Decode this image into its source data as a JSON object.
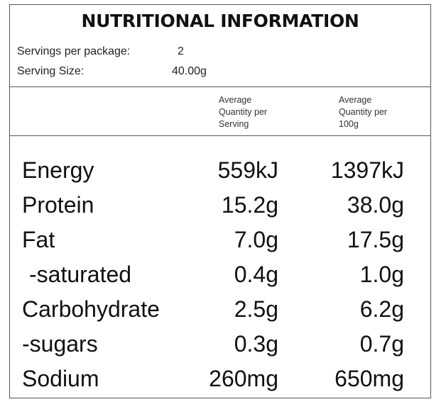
{
  "title": "NUTRITIONAL INFORMATION",
  "servings": {
    "label": "Servings per package:",
    "value": "2"
  },
  "serving_size": {
    "label": "Serving Size:",
    "value": "40.00g"
  },
  "columns": {
    "per_serving": [
      "Average",
      "Quantity per",
      "Serving"
    ],
    "per_100g": [
      "Average",
      "Quantity per",
      "100g"
    ]
  },
  "rows": [
    {
      "name": "Energy",
      "per_serving": "559kJ",
      "per_100g": "1397kJ"
    },
    {
      "name": "Protein",
      "per_serving": "15.2g",
      "per_100g": "38.0g"
    },
    {
      "name": "Fat",
      "per_serving": "7.0g",
      "per_100g": "17.5g"
    },
    {
      "name": "-saturated",
      "per_serving": "0.4g",
      "per_100g": "1.0g"
    },
    {
      "name": "Carbohydrate",
      "per_serving": "2.5g",
      "per_100g": "6.2g"
    },
    {
      "name": "-sugars",
      "per_serving": "0.3g",
      "per_100g": "0.7g"
    },
    {
      "name": "Sodium",
      "per_serving": "260mg",
      "per_100g": "650mg"
    }
  ]
}
